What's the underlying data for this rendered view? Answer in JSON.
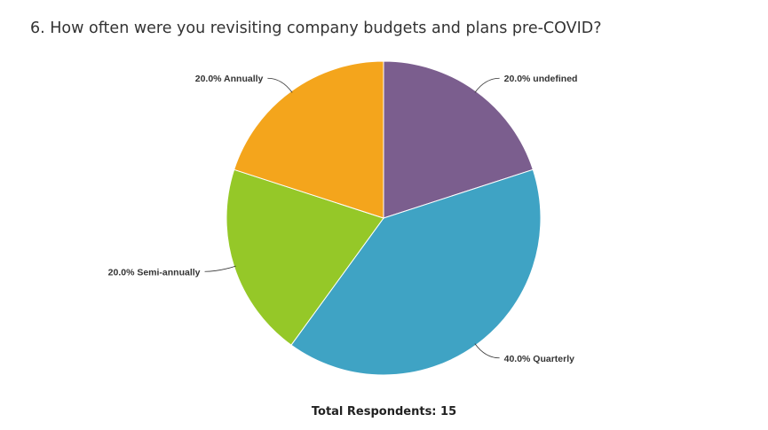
{
  "title": "6. How often were you revisiting company budgets and plans pre-COVID?",
  "footer": "Total Respondents: 15",
  "chart_data": {
    "type": "pie",
    "title": "6. How often were you revisiting company budgets and plans pre-COVID?",
    "slices": [
      {
        "label": "undefined",
        "percent": 20.0,
        "display": "20.0% undefined",
        "color": "#7b5e8e"
      },
      {
        "label": "Quarterly",
        "percent": 40.0,
        "display": "40.0% Quarterly",
        "color": "#3fa3c4"
      },
      {
        "label": "Semi-annually",
        "percent": 20.0,
        "display": "20.0% Semi-annually",
        "color": "#95c828"
      },
      {
        "label": "Annually",
        "percent": 20.0,
        "display": "20.0% Annually",
        "color": "#f4a51c"
      }
    ],
    "legend": "none",
    "total_respondents": 15
  }
}
